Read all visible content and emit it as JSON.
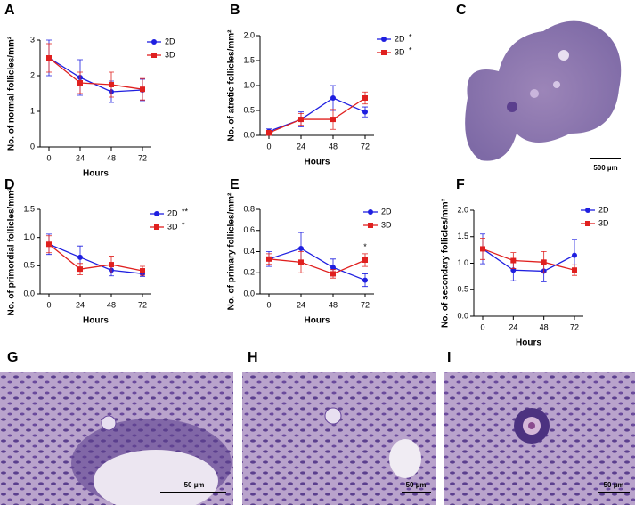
{
  "chart_data": [
    {
      "type": "line",
      "panel": "A",
      "ylabel": "No. of normal follicles/mm²",
      "xlabel": "Hours",
      "categories": [
        "0",
        "24",
        "48",
        "72"
      ],
      "ylim": [
        0,
        3
      ],
      "yticks": [
        0,
        1,
        2,
        3
      ],
      "series": [
        {
          "name": "2D",
          "color": "#1f1fe0",
          "values": [
            2.5,
            1.95,
            1.55,
            1.6
          ],
          "errors": [
            0.5,
            0.5,
            0.3,
            0.3
          ]
        },
        {
          "name": "3D",
          "color": "#e0201f",
          "values": [
            2.5,
            1.8,
            1.75,
            1.62
          ],
          "errors": [
            0.4,
            0.3,
            0.35,
            0.3
          ]
        }
      ]
    },
    {
      "type": "line",
      "panel": "B",
      "ylabel": "No. of atretic follicles/mm²",
      "xlabel": "Hours",
      "categories": [
        "0",
        "24",
        "48",
        "72"
      ],
      "ylim": [
        0,
        2
      ],
      "yticks": [
        {
          "value": 0,
          "label": "0.0"
        },
        0.5,
        {
          "value": 1,
          "label": "1.0"
        },
        1.5,
        {
          "value": 2,
          "label": "2.0"
        }
      ],
      "series": [
        {
          "name": "2D",
          "significance": "*",
          "color": "#1f1fe0",
          "values": [
            0.08,
            0.32,
            0.75,
            0.47
          ],
          "errors": [
            0.05,
            0.15,
            0.25,
            0.1
          ]
        },
        {
          "name": "3D",
          "significance": "*",
          "color": "#e0201f",
          "values": [
            0.05,
            0.32,
            0.32,
            0.75
          ],
          "errors": [
            0.05,
            0.12,
            0.2,
            0.12
          ]
        }
      ]
    },
    {
      "type": "line",
      "panel": "D",
      "ylabel": "No. of primordial follicles/mm²",
      "xlabel": "Hours",
      "categories": [
        "0",
        "24",
        "48",
        "72"
      ],
      "ylim": [
        0,
        1.5
      ],
      "yticks": [
        {
          "value": 0,
          "label": "0.0"
        },
        0.5,
        {
          "value": 1,
          "label": "1.0"
        },
        1.5
      ],
      "series": [
        {
          "name": "2D",
          "significance": "**",
          "color": "#1f1fe0",
          "values": [
            0.88,
            0.65,
            0.42,
            0.36
          ],
          "errors": [
            0.18,
            0.2,
            0.1,
            0.05
          ]
        },
        {
          "name": "3D",
          "significance": "*",
          "color": "#e0201f",
          "values": [
            0.88,
            0.44,
            0.52,
            0.41
          ],
          "errors": [
            0.15,
            0.1,
            0.15,
            0.08
          ]
        }
      ]
    },
    {
      "type": "line",
      "panel": "E",
      "ylabel": "No. of primary follicles/mm²",
      "xlabel": "Hours",
      "categories": [
        "0",
        "24",
        "48",
        "72"
      ],
      "ylim": [
        0,
        0.8
      ],
      "yticks": [
        {
          "value": 0,
          "label": "0.0"
        },
        0.2,
        0.4,
        0.6,
        0.8
      ],
      "annotation": {
        "text": "*",
        "category": 3,
        "y": 0.44
      },
      "series": [
        {
          "name": "2D",
          "color": "#1f1fe0",
          "values": [
            0.33,
            0.43,
            0.25,
            0.13
          ],
          "errors": [
            0.07,
            0.15,
            0.08,
            0.06
          ]
        },
        {
          "name": "3D",
          "color": "#e0201f",
          "values": [
            0.33,
            0.3,
            0.19,
            0.32
          ],
          "errors": [
            0.05,
            0.1,
            0.04,
            0.06
          ]
        }
      ]
    },
    {
      "type": "line",
      "panel": "F",
      "ylabel": "No. of secondary follicles/mm²",
      "xlabel": "Hours",
      "categories": [
        "0",
        "24",
        "48",
        "72"
      ],
      "ylim": [
        0,
        2
      ],
      "yticks": [
        {
          "value": 0,
          "label": "0.0"
        },
        0.5,
        {
          "value": 1,
          "label": "1.0"
        },
        1.5,
        {
          "value": 2,
          "label": "2.0"
        }
      ],
      "series": [
        {
          "name": "2D",
          "color": "#1f1fe0",
          "values": [
            1.27,
            0.87,
            0.85,
            1.15
          ],
          "errors": [
            0.28,
            0.2,
            0.2,
            0.3
          ]
        },
        {
          "name": "3D",
          "color": "#e0201f",
          "values": [
            1.27,
            1.05,
            1.02,
            0.87
          ],
          "errors": [
            0.2,
            0.15,
            0.2,
            0.1
          ]
        }
      ]
    }
  ],
  "images": [
    {
      "panel": "C",
      "scale_bar": "500 µm"
    },
    {
      "panel": "G",
      "scale_bar": "50 µm"
    },
    {
      "panel": "H",
      "scale_bar": "50 µm"
    },
    {
      "panel": "I",
      "scale_bar": "50 µm"
    }
  ]
}
